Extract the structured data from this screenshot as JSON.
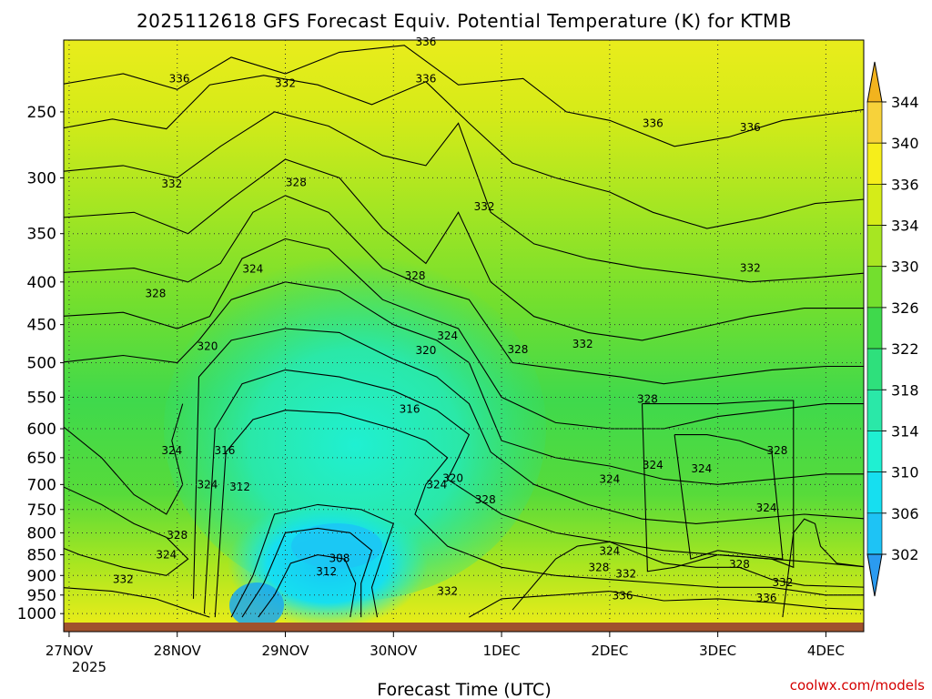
{
  "title": "2025112618 GFS Forecast Equiv. Potential Temperature (K) for KTMB",
  "credit": "coolwx.com/models",
  "chart_data": {
    "type": "heatmap",
    "title": "2025112618 GFS Forecast Equiv. Potential Temperature (K) for KTMB",
    "xlabel": "Forecast Time (UTC)",
    "ylabel": "",
    "x_ticks": [
      "27NOV",
      "28NOV",
      "29NOV",
      "30NOV",
      "1DEC",
      "2DEC",
      "3DEC",
      "4DEC"
    ],
    "x_tick_year": "2025",
    "x_range_days": [
      -0.05,
      7.35
    ],
    "y_scale": "log",
    "y_ticks": [
      250,
      300,
      350,
      400,
      450,
      500,
      550,
      600,
      650,
      700,
      750,
      800,
      850,
      900,
      950,
      1000
    ],
    "y_range": [
      205,
      1025
    ],
    "grid": true,
    "colorbar": {
      "ticks": [
        302,
        306,
        310,
        314,
        318,
        322,
        326,
        330,
        334,
        336,
        340,
        344
      ],
      "colors": [
        "#2b9bf0",
        "#1ec3f5",
        "#16dff0",
        "#1ff0d2",
        "#2ae8a8",
        "#2ee07c",
        "#3fd94c",
        "#73df2e",
        "#a7e622",
        "#d5ec18",
        "#f6ee1b",
        "#f7d23a",
        "#f2b31e"
      ]
    },
    "contour_interval": 2,
    "contour_labels": [
      {
        "value": "336",
        "time": "28NOV+0.02",
        "p": 228
      },
      {
        "value": "336",
        "time": "30NOV+0.30",
        "p": 206
      },
      {
        "value": "336",
        "time": "30NOV+0.30",
        "p": 228
      },
      {
        "value": "336",
        "time": "2DEC+0.40",
        "p": 258
      },
      {
        "value": "336",
        "time": "3DEC+0.30",
        "p": 261
      },
      {
        "value": "336",
        "time": "3DEC+0.45",
        "p": 958
      },
      {
        "value": "336",
        "time": "2DEC+0.12",
        "p": 952
      },
      {
        "value": "332",
        "time": "29NOV+0.00",
        "p": 231
      },
      {
        "value": "332",
        "time": "28NOV-0.05",
        "p": 305
      },
      {
        "value": "332",
        "time": "1DEC-0.16",
        "p": 325
      },
      {
        "value": "332",
        "time": "3DEC+0.30",
        "p": 385
      },
      {
        "value": "332",
        "time": "2DEC-0.25",
        "p": 475
      },
      {
        "value": "332",
        "time": "30NOV+0.50",
        "p": 940
      },
      {
        "value": "332",
        "time": "27NOV+0.50",
        "p": 910
      },
      {
        "value": "332",
        "time": "2DEC+0.15",
        "p": 896
      },
      {
        "value": "332",
        "time": "3DEC+0.60",
        "p": 918
      },
      {
        "value": "328",
        "time": "29NOV+0.10",
        "p": 304
      },
      {
        "value": "328",
        "time": "27NOV+0.80",
        "p": 413
      },
      {
        "value": "328",
        "time": "30NOV+0.20",
        "p": 393
      },
      {
        "value": "328",
        "time": "1DEC+0.15",
        "p": 482
      },
      {
        "value": "328",
        "time": "2DEC+0.35",
        "p": 553
      },
      {
        "value": "328",
        "time": "3DEC+0.55",
        "p": 637
      },
      {
        "value": "328",
        "time": "1DEC-0.15",
        "p": 730
      },
      {
        "value": "328",
        "time": "27NOV+1.00",
        "p": 805
      },
      {
        "value": "328",
        "time": "2DEC-0.10",
        "p": 880
      },
      {
        "value": "328",
        "time": "3DEC+0.20",
        "p": 873
      },
      {
        "value": "324",
        "time": "28NOV+0.70",
        "p": 386
      },
      {
        "value": "324",
        "time": "30NOV+0.50",
        "p": 464
      },
      {
        "value": "324",
        "time": "28NOV-0.05",
        "p": 637
      },
      {
        "value": "324",
        "time": "28NOV+0.28",
        "p": 700
      },
      {
        "value": "324",
        "time": "30NOV+0.40",
        "p": 700
      },
      {
        "value": "324",
        "time": "1DEC+1.00",
        "p": 690
      },
      {
        "value": "324",
        "time": "2DEC+0.40",
        "p": 663
      },
      {
        "value": "324",
        "time": "2DEC+0.85",
        "p": 670
      },
      {
        "value": "324",
        "time": "3DEC+0.45",
        "p": 747
      },
      {
        "value": "324",
        "time": "2DEC+0.00",
        "p": 841
      },
      {
        "value": "324",
        "time": "27NOV+0.90",
        "p": 850
      },
      {
        "value": "320",
        "time": "28NOV+0.28",
        "p": 478
      },
      {
        "value": "320",
        "time": "30NOV+0.30",
        "p": 483
      },
      {
        "value": "320",
        "time": "30NOV+0.55",
        "p": 688
      },
      {
        "value": "316",
        "time": "28NOV+0.44",
        "p": 637
      },
      {
        "value": "316",
        "time": "30NOV+0.15",
        "p": 568
      },
      {
        "value": "312",
        "time": "28NOV+0.58",
        "p": 705
      },
      {
        "value": "312",
        "time": "29NOV+0.38",
        "p": 890
      },
      {
        "value": "308",
        "time": "29NOV+0.50",
        "p": 858
      }
    ]
  }
}
